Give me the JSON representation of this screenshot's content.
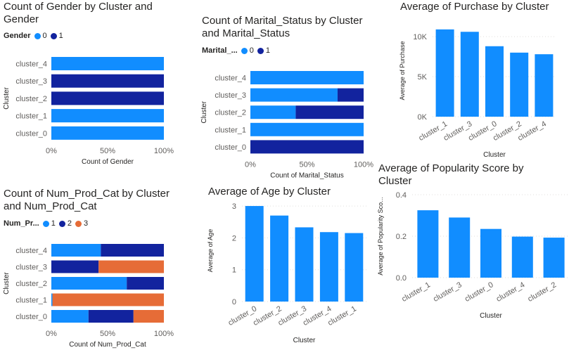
{
  "colors": {
    "c0": "#118DFF",
    "c1": "#12239E",
    "c2": "#E66C37",
    "text": "#252423",
    "axis": "#605E5C",
    "grid": "#E1DFDD"
  },
  "chart_data": [
    {
      "id": "gender",
      "type": "bar",
      "orientation": "horizontal",
      "stacked": "100%",
      "title": "Count of Gender by Cluster and Gender",
      "legend": {
        "title": "Gender",
        "items": [
          "0",
          "1"
        ],
        "position": "top-left"
      },
      "categories": [
        "cluster_4",
        "cluster_3",
        "cluster_2",
        "cluster_1",
        "cluster_0"
      ],
      "series": [
        {
          "name": "0",
          "values": [
            100,
            0,
            0,
            100,
            100
          ]
        },
        {
          "name": "1",
          "values": [
            0,
            100,
            100,
            0,
            0
          ]
        }
      ],
      "xticks": [
        "0%",
        "50%",
        "100%"
      ],
      "xlabel": "Count of Gender",
      "ylabel": "Cluster",
      "xlim": [
        0,
        100
      ]
    },
    {
      "id": "marital",
      "type": "bar",
      "orientation": "horizontal",
      "stacked": "100%",
      "title": "Count of Marital_Status by Cluster and Marital_Status",
      "legend": {
        "title": "Marital_...",
        "items": [
          "0",
          "1"
        ],
        "position": "top-left"
      },
      "categories": [
        "cluster_4",
        "cluster_3",
        "cluster_2",
        "cluster_1",
        "cluster_0"
      ],
      "series": [
        {
          "name": "0",
          "values": [
            100,
            77,
            40,
            100,
            0
          ]
        },
        {
          "name": "1",
          "values": [
            0,
            23,
            60,
            0,
            100
          ]
        }
      ],
      "xticks": [
        "0%",
        "50%",
        "100%"
      ],
      "xlabel": "Count of Marital_Status",
      "ylabel": "Cluster",
      "xlim": [
        0,
        100
      ]
    },
    {
      "id": "purchase",
      "type": "bar",
      "orientation": "vertical",
      "title": "Average of Purchase by Cluster",
      "categories": [
        "cluster_1",
        "cluster_3",
        "cluster_0",
        "cluster_2",
        "cluster_4"
      ],
      "values": [
        10900,
        10600,
        8800,
        8000,
        7800
      ],
      "yticks": [
        {
          "v": 0,
          "label": "0K"
        },
        {
          "v": 5000,
          "label": "5K"
        },
        {
          "v": 10000,
          "label": "10K"
        }
      ],
      "ylim": [
        0,
        11500
      ],
      "xlabel": "Cluster",
      "ylabel": "Average of Purchase"
    },
    {
      "id": "prodcat",
      "type": "bar",
      "orientation": "horizontal",
      "stacked": "100%",
      "title": "Count of Num_Prod_Cat by Cluster and Num_Prod_Cat",
      "legend": {
        "title": "Num_Pr...",
        "items": [
          "1",
          "2",
          "3"
        ],
        "position": "top-left"
      },
      "categories": [
        "cluster_4",
        "cluster_3",
        "cluster_2",
        "cluster_1",
        "cluster_0"
      ],
      "series": [
        {
          "name": "1",
          "values": [
            44,
            0,
            67,
            1,
            33
          ]
        },
        {
          "name": "2",
          "values": [
            56,
            42,
            33,
            0,
            40
          ]
        },
        {
          "name": "3",
          "values": [
            0,
            58,
            0,
            99,
            27
          ]
        }
      ],
      "xticks": [
        "0%",
        "50%",
        "100%"
      ],
      "xlabel": "Count of Num_Prod_Cat",
      "ylabel": "Cluster",
      "xlim": [
        0,
        100
      ]
    },
    {
      "id": "age",
      "type": "bar",
      "orientation": "vertical",
      "title": "Average of Age by Cluster",
      "categories": [
        "cluster_0",
        "cluster_2",
        "cluster_3",
        "cluster_4",
        "cluster_1"
      ],
      "values": [
        3.0,
        2.7,
        2.33,
        2.18,
        2.15
      ],
      "yticks": [
        {
          "v": 0,
          "label": "0"
        },
        {
          "v": 1,
          "label": "1"
        },
        {
          "v": 2,
          "label": "2"
        },
        {
          "v": 3,
          "label": "3"
        }
      ],
      "ylim": [
        0,
        3.2
      ],
      "xlabel": "Cluster",
      "ylabel": "Average of Age"
    },
    {
      "id": "popularity",
      "type": "bar",
      "orientation": "vertical",
      "title": "Average of Popularity Score by Cluster",
      "categories": [
        "cluster_1",
        "cluster_3",
        "cluster_0",
        "cluster_4",
        "cluster_2"
      ],
      "values": [
        0.325,
        0.29,
        0.235,
        0.198,
        0.193
      ],
      "yticks": [
        {
          "v": 0,
          "label": "0.0"
        },
        {
          "v": 0.2,
          "label": "0.2"
        },
        {
          "v": 0.4,
          "label": "0.4"
        }
      ],
      "ylim": [
        0,
        0.4
      ],
      "xlabel": "Cluster",
      "ylabel": "Average of Popularity Sco..."
    }
  ]
}
